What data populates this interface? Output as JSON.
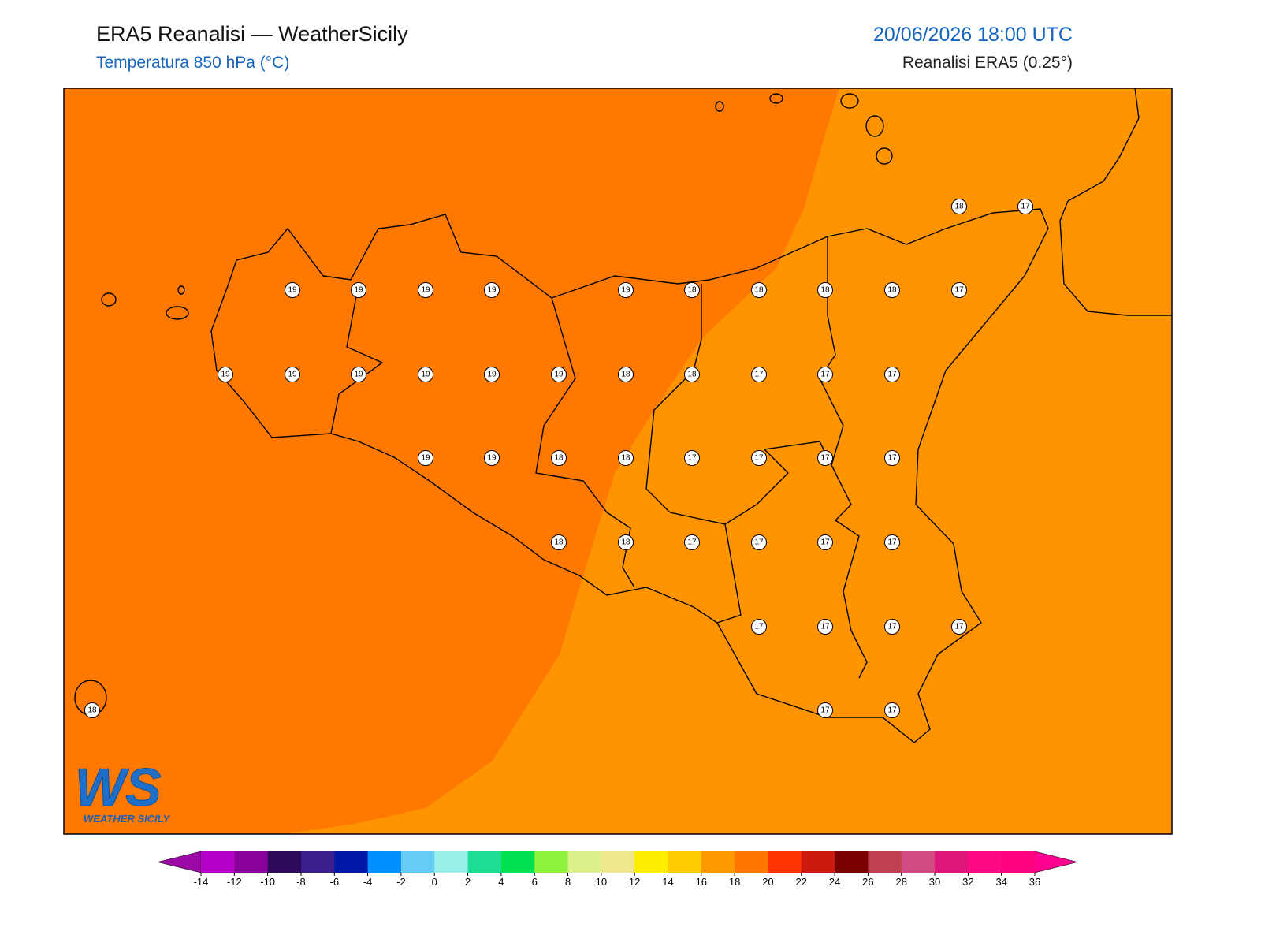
{
  "header": {
    "title": "ERA5 Reanalisi — WeatherSicily",
    "subtitle": "Temperatura 850 hPa (°C)",
    "date": "20/06/2026 18:00 UTC",
    "source": "Reanalisi ERA5 (0.25°)"
  },
  "points": [
    {
      "value": 18
    },
    {
      "value": 17
    },
    {
      "value": 19
    },
    {
      "value": 19
    },
    {
      "value": 19
    },
    {
      "value": 19
    },
    {
      "value": 19
    },
    {
      "value": 18
    },
    {
      "value": 18
    },
    {
      "value": 18
    },
    {
      "value": 18
    },
    {
      "value": 17
    },
    {
      "value": 19
    },
    {
      "value": 19
    },
    {
      "value": 19
    },
    {
      "value": 19
    },
    {
      "value": 19
    },
    {
      "value": 19
    },
    {
      "value": 18
    },
    {
      "value": 18
    },
    {
      "value": 17
    },
    {
      "value": 17
    },
    {
      "value": 17
    },
    {
      "value": 19
    },
    {
      "value": 19
    },
    {
      "value": 18
    },
    {
      "value": 18
    },
    {
      "value": 17
    },
    {
      "value": 17
    },
    {
      "value": 17
    },
    {
      "value": 17
    },
    {
      "value": 18
    },
    {
      "value": 18
    },
    {
      "value": 17
    },
    {
      "value": 17
    },
    {
      "value": 17
    },
    {
      "value": 17
    },
    {
      "value": 17
    },
    {
      "value": 17
    },
    {
      "value": 17
    },
    {
      "value": 17
    },
    {
      "value": 18
    },
    {
      "value": 17
    },
    {
      "value": 17
    }
  ],
  "colorbar": {
    "ticks": [
      -14,
      -12,
      -10,
      -8,
      -6,
      -4,
      -2,
      0,
      2,
      4,
      6,
      8,
      10,
      12,
      14,
      16,
      18,
      20,
      22,
      24,
      26,
      28,
      30,
      32,
      34,
      36
    ],
    "colors": [
      "#b700c8",
      "#8a009a",
      "#2e0a5a",
      "#3a1f8a",
      "#0018a8",
      "#0090ff",
      "#66ccf5",
      "#99f0e8",
      "#1ede96",
      "#00e050",
      "#8ef23a",
      "#dcf08a",
      "#f0e68c",
      "#ffee00",
      "#ffcc00",
      "#ff9900",
      "#ff7700",
      "#ff3300",
      "#cc1a10",
      "#7a0000",
      "#c0404f",
      "#d24b80",
      "#e0157a",
      "#ff0a84",
      "#ff007f"
    ],
    "under": "#9b0aa6",
    "over": "#ff0090"
  },
  "logo": {
    "initials": "WS",
    "name": "WEATHER SICILY"
  }
}
